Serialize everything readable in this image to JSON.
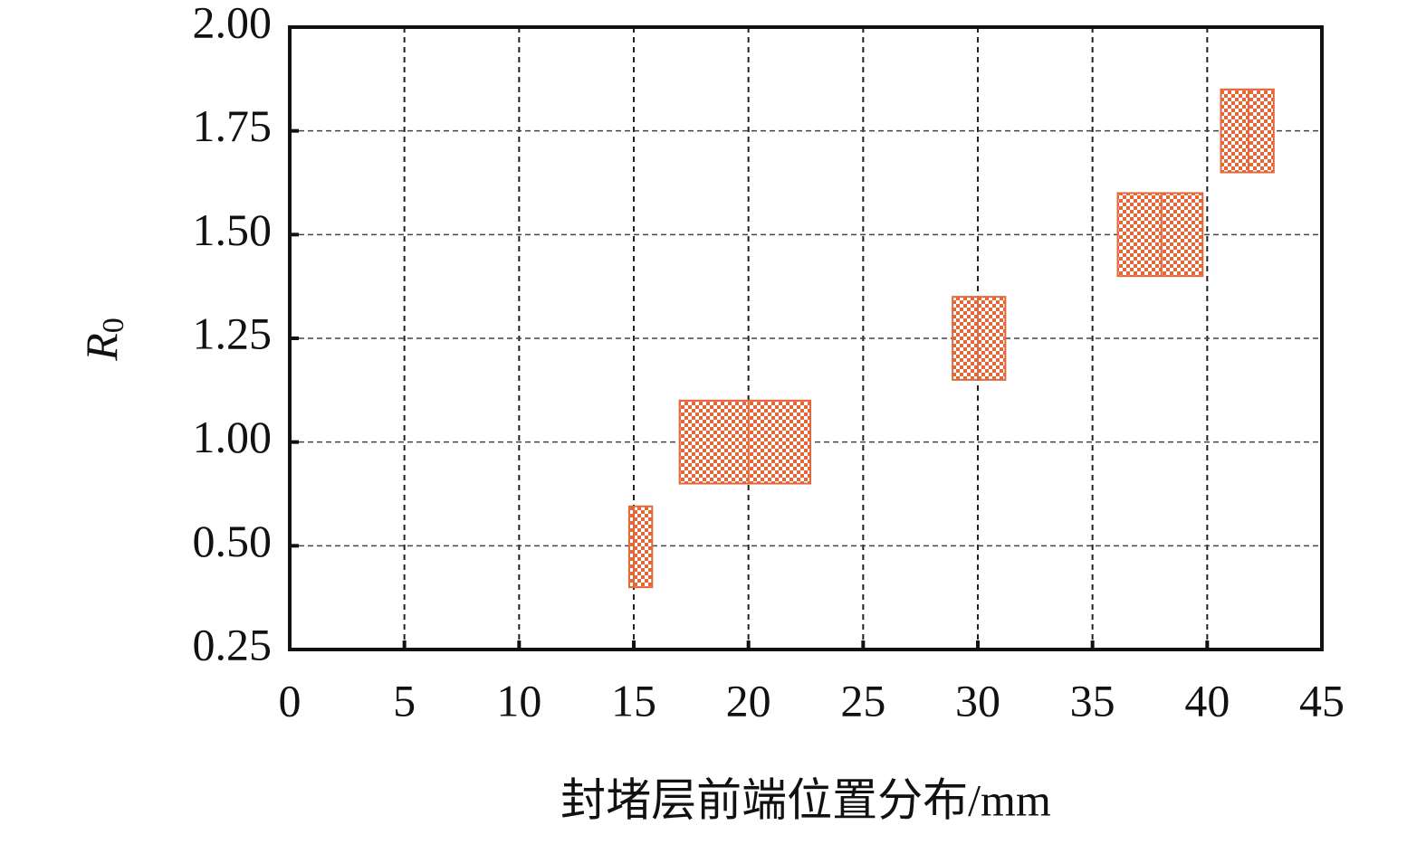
{
  "chart_data": {
    "type": "range",
    "xlabel": "封堵层前端位置分布/mm",
    "ylabel": {
      "text": "R",
      "subscript": "0"
    },
    "xlim": [
      0,
      45
    ],
    "xticks": [
      0,
      5,
      10,
      15,
      20,
      25,
      30,
      35,
      40,
      45
    ],
    "ylim": [
      0.25,
      2.0
    ],
    "yticks": [
      0.25,
      {
        "value": 0.5,
        "label": "0.50"
      },
      {
        "value": 1.0,
        "label": "1.00"
      },
      1.25,
      {
        "value": 1.5,
        "label": "1.50"
      },
      1.75,
      {
        "value": 2.0,
        "label": "2.00"
      }
    ],
    "grid": true,
    "color": "#e2683a",
    "x": [
      15,
      20,
      30,
      38,
      41.8
    ],
    "xmin": [
      14.8,
      17.0,
      28.9,
      36.1,
      40.6
    ],
    "xmax": [
      15.8,
      22.7,
      31.2,
      39.8,
      42.9
    ],
    "ymin": [
      0.4,
      0.8,
      1.15,
      1.4,
      1.65
    ],
    "ymax": [
      0.69,
      1.1,
      1.35,
      1.6,
      1.85
    ]
  }
}
